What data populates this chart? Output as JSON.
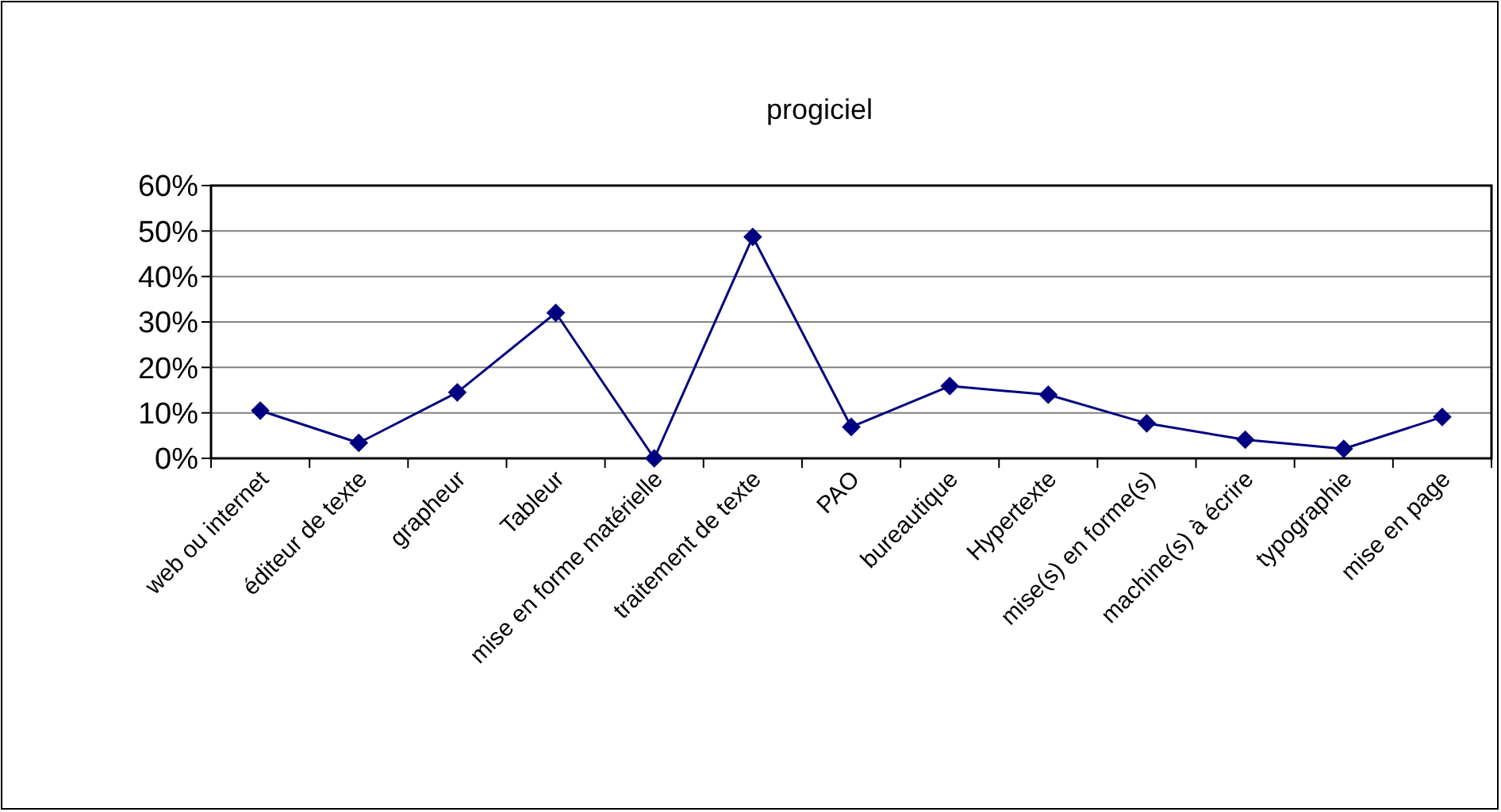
{
  "chart_data": {
    "type": "line",
    "title": "progiciel",
    "categories": [
      "web ou internet",
      "éditeur de texte",
      "grapheur",
      "Tableur",
      "mise en forme matérielle",
      "traitement de texte",
      "PAO",
      "bureautique",
      "Hypertexte",
      "mise(s) en forme(s)",
      "machine(s) à écrire",
      "typographie",
      "mise en page"
    ],
    "series": [
      {
        "color": "#000080",
        "values": [
          10.5,
          3.4,
          14.5,
          32,
          0,
          48.7,
          6.9,
          15.9,
          14,
          7.7,
          4.1,
          2.1,
          9.1
        ]
      }
    ],
    "ylim": [
      0,
      60
    ],
    "yticks": [
      {
        "value": 0,
        "label": "0%"
      },
      {
        "value": 10,
        "label": "10%"
      },
      {
        "value": 20,
        "label": "20%"
      },
      {
        "value": 30,
        "label": "30%"
      },
      {
        "value": 40,
        "label": "40%"
      },
      {
        "value": 50,
        "label": "50%"
      },
      {
        "value": 60,
        "label": "60%"
      }
    ],
    "grid": "y",
    "marker": "diamond",
    "line_style": "solid"
  }
}
